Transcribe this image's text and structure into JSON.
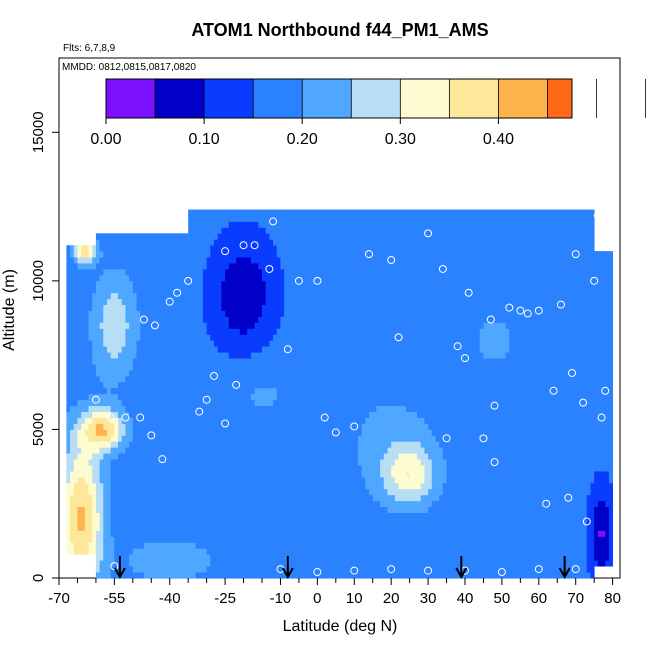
{
  "chart_data": {
    "type": "heatmap",
    "title": "ATOM1 Northbound f44_PM1_AMS",
    "flights_label": "Flts: 6,7,8,9",
    "dates_label": "MMDD: 0812,0815,0817,0820",
    "xlabel": "Latitude (deg N)",
    "ylabel": "Altitude (m)",
    "xlim": [
      -70,
      82
    ],
    "ylim": [
      0,
      17500
    ],
    "x_ticks": [
      -70,
      -55,
      -40,
      -25,
      -10,
      0,
      10,
      20,
      30,
      40,
      50,
      60,
      70,
      80
    ],
    "x_tick_labels": [
      "-70",
      "-55",
      "-40",
      "-25",
      "-10",
      "0",
      "10",
      "20",
      "30",
      "40",
      "50",
      "60",
      "70",
      "80"
    ],
    "x_minor_ticks": [
      -65,
      -60,
      -50,
      -45,
      -35,
      -30,
      -20,
      -15,
      -5,
      5,
      15,
      25,
      35,
      45,
      55,
      65,
      75
    ],
    "y_ticks": [
      0,
      5000,
      10000,
      15000
    ],
    "y_tick_labels": [
      "0",
      "5000",
      "10000",
      "15000"
    ],
    "colorbar": {
      "min": 0.0,
      "max": 0.475,
      "ticks": [
        0.0,
        0.1,
        0.2,
        0.3,
        0.4
      ],
      "tick_labels": [
        "0.00",
        "0.10",
        "0.20",
        "0.30",
        "0.40"
      ],
      "bin_width": 0.05,
      "colors": [
        "#7b10ff",
        "#0000c8",
        "#0a3cff",
        "#2a82ff",
        "#4fa7ff",
        "#b8def5",
        "#fdfbd0",
        "#fde79a",
        "#fdb44d",
        "#ff6a1a",
        "#ff0a0a",
        "#a81414"
      ]
    },
    "flight_arrows_lat": [
      -53.5,
      -8,
      39,
      67
    ],
    "field_model": {
      "background": 0.165,
      "features": [
        {
          "name": "southern-high-surface",
          "lat": -64,
          "alt": 2000,
          "lat_width": 6,
          "alt_width": 2600,
          "amp": 0.24
        },
        {
          "name": "southern-high-midlevel",
          "lat": -58,
          "alt": 5000,
          "lat_width": 6,
          "alt_width": 700,
          "amp": 0.22
        },
        {
          "name": "southern-upper-band",
          "lat": -55,
          "alt": 8500,
          "lat_width": 6,
          "alt_width": 1800,
          "amp": 0.12
        },
        {
          "name": "southern-top-patch",
          "lat": -63,
          "alt": 11000,
          "lat_width": 3,
          "alt_width": 400,
          "amp": 0.22
        },
        {
          "name": "tropical-upper-low",
          "lat": -20,
          "alt": 9500,
          "lat_width": 8,
          "alt_width": 1800,
          "amp": -0.11
        },
        {
          "name": "tropical-midlevel-light",
          "lat": -15,
          "alt": 6200,
          "lat_width": 12,
          "alt_width": 1400,
          "amp": 0.04
        },
        {
          "name": "northern-tropics-plume",
          "lat": 25,
          "alt": 3500,
          "lat_width": 7,
          "alt_width": 1000,
          "amp": 0.15
        },
        {
          "name": "northern-tropics-plume-halo",
          "lat": 20,
          "alt": 4500,
          "lat_width": 14,
          "alt_width": 2200,
          "amp": 0.05
        },
        {
          "name": "midlatitude-upper-light",
          "lat": 48,
          "alt": 8000,
          "lat_width": 12,
          "alt_width": 1800,
          "amp": 0.04
        },
        {
          "name": "arctic-low",
          "lat": 77,
          "alt": 1500,
          "lat_width": 3,
          "alt_width": 1500,
          "amp": -0.12
        },
        {
          "name": "southern-boundary-layer-light",
          "lat": -40,
          "alt": 600,
          "lat_width": 12,
          "alt_width": 700,
          "amp": 0.08
        }
      ]
    },
    "coverage": [
      {
        "lat_start": -68,
        "lat_end": -60,
        "alt_bottom": 800,
        "alt_top": 11200
      },
      {
        "lat_start": -60,
        "lat_end": -35,
        "alt_bottom": 0,
        "alt_top": 11500
      },
      {
        "lat_start": -35,
        "lat_end": 75,
        "alt_bottom": 0,
        "alt_top": 12400
      },
      {
        "lat_start": 75,
        "lat_end": 80,
        "alt_bottom": 400,
        "alt_top": 11000
      }
    ],
    "sample_points": [
      [
        -55,
        400
      ],
      [
        -60,
        6000
      ],
      [
        -56,
        5400
      ],
      [
        -52,
        5400
      ],
      [
        -48,
        5400
      ],
      [
        -45,
        4800
      ],
      [
        -42,
        4000
      ],
      [
        -47,
        8700
      ],
      [
        -44,
        8500
      ],
      [
        -40,
        9300
      ],
      [
        -38,
        9600
      ],
      [
        -35,
        10000
      ],
      [
        -32,
        5600
      ],
      [
        -30,
        6000
      ],
      [
        -28,
        6800
      ],
      [
        -25,
        11000
      ],
      [
        -25,
        5200
      ],
      [
        -22,
        6500
      ],
      [
        -20,
        11200
      ],
      [
        -17,
        11200
      ],
      [
        -12,
        12000
      ],
      [
        -13,
        10400
      ],
      [
        -8,
        7700
      ],
      [
        -5,
        10000
      ],
      [
        0,
        10000
      ],
      [
        2,
        5400
      ],
      [
        5,
        4900
      ],
      [
        10,
        5100
      ],
      [
        14,
        10900
      ],
      [
        20,
        10700
      ],
      [
        25,
        3400
      ],
      [
        22,
        8100
      ],
      [
        30,
        11600
      ],
      [
        34,
        10400
      ],
      [
        35,
        4700
      ],
      [
        38,
        7800
      ],
      [
        40,
        7400
      ],
      [
        41,
        9600
      ],
      [
        45,
        4700
      ],
      [
        47,
        8700
      ],
      [
        48,
        3900
      ],
      [
        48,
        5800
      ],
      [
        52,
        9100
      ],
      [
        55,
        9000
      ],
      [
        57,
        8900
      ],
      [
        60,
        9000
      ],
      [
        62,
        2500
      ],
      [
        64,
        6300
      ],
      [
        66,
        9200
      ],
      [
        68,
        2700
      ],
      [
        69,
        6900
      ],
      [
        70,
        10900
      ],
      [
        72,
        5900
      ],
      [
        73,
        1900
      ],
      [
        75,
        10000
      ],
      [
        77,
        5400
      ],
      [
        78,
        6300
      ],
      [
        76,
        12200
      ],
      [
        -10,
        300
      ],
      [
        0,
        200
      ],
      [
        10,
        250
      ],
      [
        20,
        300
      ],
      [
        30,
        250
      ],
      [
        40,
        250
      ],
      [
        50,
        200
      ],
      [
        60,
        300
      ],
      [
        70,
        300
      ]
    ]
  }
}
